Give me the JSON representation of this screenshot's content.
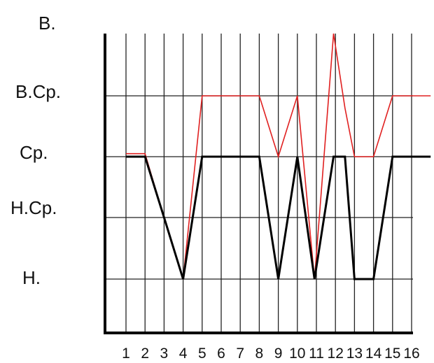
{
  "chart_data": {
    "type": "line",
    "title": "",
    "xlabel": "",
    "ylabel": "",
    "x": [
      1,
      2,
      3,
      4,
      5,
      6,
      7,
      8,
      9,
      10,
      11,
      12,
      13,
      14,
      15,
      16
    ],
    "x_tick_labels": [
      "1",
      "2",
      "3",
      "4",
      "5",
      "6",
      "7",
      "8",
      "9",
      "10",
      "11",
      "12",
      "13",
      "14",
      "15",
      "16"
    ],
    "y_levels": [
      "Н.",
      "Н.Ср.",
      "Ср.",
      "В.Ср.",
      "В."
    ],
    "ylim": [
      0,
      5
    ],
    "grid": true,
    "series": [
      {
        "color": "#e02020",
        "points": [
          [
            1,
            3.05
          ],
          [
            2,
            3.05
          ],
          [
            3,
            2.0
          ],
          [
            4,
            1.0
          ],
          [
            5,
            4.0
          ],
          [
            6,
            4.0
          ],
          [
            7,
            4.0
          ],
          [
            8,
            4.0
          ],
          [
            9,
            3.0
          ],
          [
            10,
            4.0
          ],
          [
            10.9,
            1.0
          ],
          [
            11.9,
            5.0
          ],
          [
            12.5,
            3.8
          ],
          [
            13,
            3.0
          ],
          [
            14,
            3.0
          ],
          [
            15,
            4.0
          ],
          [
            16,
            4.0
          ],
          [
            17,
            4.0
          ]
        ]
      },
      {
        "color": "#000000",
        "points": [
          [
            1,
            3.0
          ],
          [
            2,
            3.0
          ],
          [
            3,
            2.0
          ],
          [
            4,
            1.0
          ],
          [
            5,
            3.0
          ],
          [
            6,
            3.0
          ],
          [
            7,
            3.0
          ],
          [
            8,
            3.0
          ],
          [
            9,
            1.0
          ],
          [
            10,
            3.0
          ],
          [
            10.9,
            1.0
          ],
          [
            11.9,
            3.0
          ],
          [
            12.5,
            3.0
          ],
          [
            13,
            1.0
          ],
          [
            14,
            1.0
          ],
          [
            15,
            3.0
          ],
          [
            16,
            3.0
          ],
          [
            17,
            3.0
          ]
        ]
      }
    ]
  }
}
